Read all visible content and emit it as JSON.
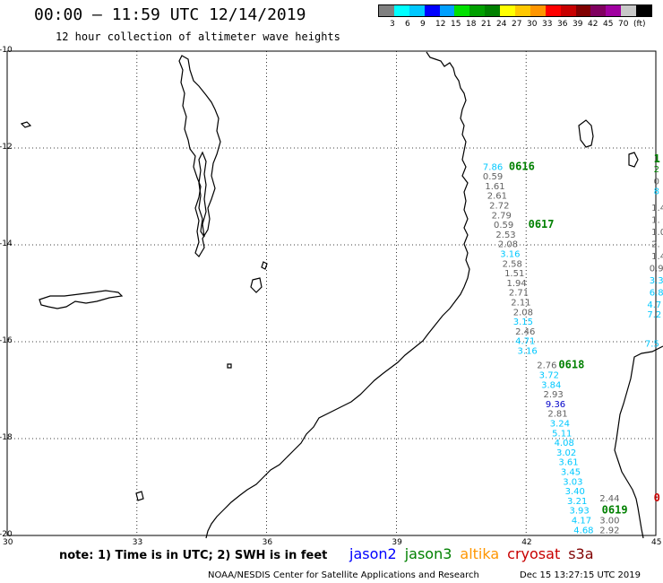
{
  "header": {
    "title": "00:00 – 11:59 UTC 12/14/2019",
    "subtitle": "12 hour collection of altimeter wave heights"
  },
  "legend": {
    "colors": [
      "#808080",
      "#00ffff",
      "#00c8ff",
      "#0000ff",
      "#00a0ff",
      "#00e000",
      "#00a000",
      "#008000",
      "#ffff00",
      "#ffc800",
      "#ff9600",
      "#ff0000",
      "#c80000",
      "#800000",
      "#800060",
      "#a000a0",
      "#c8c8c8",
      "#000000"
    ],
    "labels": [
      "3",
      "6",
      "9",
      "12",
      "15",
      "18",
      "21",
      "24",
      "27",
      "30",
      "33",
      "36",
      "39",
      "42",
      "45",
      "70",
      "(ft)"
    ]
  },
  "map": {
    "lat_labels": [
      "-10",
      "-12",
      "-14",
      "-16",
      "-18",
      "-20"
    ],
    "lon_labels": [
      "30",
      "33",
      "36",
      "39",
      "42",
      "45"
    ],
    "lon_range": [
      30,
      45
    ],
    "lat_range": [
      -20,
      -10
    ],
    "coast_color": "#000000",
    "grid": "dotted"
  },
  "wave_labels": [
    {
      "text": "7.86",
      "color": "#00c8ff",
      "lon": 41.0,
      "lat": -12.45
    },
    {
      "text": "0.59",
      "color": "#606060",
      "lon": 41.0,
      "lat": -12.65
    },
    {
      "text": "1.61",
      "color": "#606060",
      "lon": 41.05,
      "lat": -12.85
    },
    {
      "text": "2.61",
      "color": "#606060",
      "lon": 41.1,
      "lat": -13.05
    },
    {
      "text": "2.72",
      "color": "#606060",
      "lon": 41.15,
      "lat": -13.25
    },
    {
      "text": "2.79",
      "color": "#606060",
      "lon": 41.2,
      "lat": -13.45
    },
    {
      "text": "0.59",
      "color": "#606060",
      "lon": 41.25,
      "lat": -13.65
    },
    {
      "text": "2.53",
      "color": "#606060",
      "lon": 41.3,
      "lat": -13.85
    },
    {
      "text": "2.08",
      "color": "#606060",
      "lon": 41.35,
      "lat": -14.05
    },
    {
      "text": "3.16",
      "color": "#00c8ff",
      "lon": 41.4,
      "lat": -14.25
    },
    {
      "text": "2.58",
      "color": "#606060",
      "lon": 41.45,
      "lat": -14.45
    },
    {
      "text": "1.51",
      "color": "#606060",
      "lon": 41.5,
      "lat": -14.65
    },
    {
      "text": "1.94",
      "color": "#606060",
      "lon": 41.55,
      "lat": -14.85
    },
    {
      "text": "2.71",
      "color": "#606060",
      "lon": 41.6,
      "lat": -15.05
    },
    {
      "text": "2.11",
      "color": "#606060",
      "lon": 41.65,
      "lat": -15.25
    },
    {
      "text": "2.08",
      "color": "#606060",
      "lon": 41.7,
      "lat": -15.45
    },
    {
      "text": "3.15",
      "color": "#00c8ff",
      "lon": 41.7,
      "lat": -15.65
    },
    {
      "text": "2.46",
      "color": "#606060",
      "lon": 41.75,
      "lat": -15.85
    },
    {
      "text": "4.71",
      "color": "#00c8ff",
      "lon": 41.75,
      "lat": -16.05
    },
    {
      "text": "3.16",
      "color": "#00c8ff",
      "lon": 41.8,
      "lat": -16.25
    },
    {
      "text": "2.76",
      "color": "#606060",
      "lon": 42.25,
      "lat": -16.55
    },
    {
      "text": "3.72",
      "color": "#00c8ff",
      "lon": 42.3,
      "lat": -16.75
    },
    {
      "text": "3.84",
      "color": "#00c8ff",
      "lon": 42.35,
      "lat": -16.95
    },
    {
      "text": "2.93",
      "color": "#606060",
      "lon": 42.4,
      "lat": -17.15
    },
    {
      "text": "9.36",
      "color": "#0000c8",
      "lon": 42.45,
      "lat": -17.35
    },
    {
      "text": "2.81",
      "color": "#606060",
      "lon": 42.5,
      "lat": -17.55
    },
    {
      "text": "3.24",
      "color": "#00c8ff",
      "lon": 42.55,
      "lat": -17.75
    },
    {
      "text": "5.11",
      "color": "#00c8ff",
      "lon": 42.6,
      "lat": -17.95
    },
    {
      "text": "4.08",
      "color": "#00c8ff",
      "lon": 42.65,
      "lat": -18.15
    },
    {
      "text": "3.02",
      "color": "#00c8ff",
      "lon": 42.7,
      "lat": -18.35
    },
    {
      "text": "3.61",
      "color": "#00c8ff",
      "lon": 42.75,
      "lat": -18.55
    },
    {
      "text": "3.45",
      "color": "#00c8ff",
      "lon": 42.8,
      "lat": -18.75
    },
    {
      "text": "3.03",
      "color": "#00c8ff",
      "lon": 42.85,
      "lat": -18.95
    },
    {
      "text": "3.40",
      "color": "#00c8ff",
      "lon": 42.9,
      "lat": -19.15
    },
    {
      "text": "3.21",
      "color": "#00c8ff",
      "lon": 42.95,
      "lat": -19.35
    },
    {
      "text": "3.93",
      "color": "#00c8ff",
      "lon": 43.0,
      "lat": -19.55
    },
    {
      "text": "4.17",
      "color": "#00c8ff",
      "lon": 43.05,
      "lat": -19.75
    },
    {
      "text": "4.68",
      "color": "#00c8ff",
      "lon": 43.1,
      "lat": -19.95
    },
    {
      "text": "2.44",
      "color": "#606060",
      "lon": 43.7,
      "lat": -19.3
    },
    {
      "text": "3.00",
      "color": "#606060",
      "lon": 43.7,
      "lat": -19.75
    },
    {
      "text": "2.92",
      "color": "#606060",
      "lon": 43.7,
      "lat": -19.95
    },
    {
      "text": "1.4",
      "color": "#606060",
      "lon": 44.9,
      "lat": -13.3
    },
    {
      "text": "1.",
      "color": "#606060",
      "lon": 44.9,
      "lat": -13.55
    },
    {
      "text": "1.0",
      "color": "#606060",
      "lon": 44.9,
      "lat": -13.8
    },
    {
      "text": "2.",
      "color": "#606060",
      "lon": 44.9,
      "lat": -14.05
    },
    {
      "text": "1.4",
      "color": "#606060",
      "lon": 44.9,
      "lat": -14.3
    },
    {
      "text": "0.9",
      "color": "#606060",
      "lon": 44.85,
      "lat": -14.55
    },
    {
      "text": "3.3",
      "color": "#00c8ff",
      "lon": 44.85,
      "lat": -14.8
    },
    {
      "text": "6.8",
      "color": "#00c8ff",
      "lon": 44.85,
      "lat": -15.05
    },
    {
      "text": "4.7",
      "color": "#00c8ff",
      "lon": 44.8,
      "lat": -15.3
    },
    {
      "text": "7.2",
      "color": "#00c8ff",
      "lon": 44.8,
      "lat": -15.5
    },
    {
      "text": "7.5",
      "color": "#00c8ff",
      "lon": 44.75,
      "lat": -16.1
    },
    {
      "text": "2",
      "color": "#008000",
      "lon": 44.95,
      "lat": -12.5
    },
    {
      "text": "0",
      "color": "#606060",
      "lon": 44.95,
      "lat": -12.75
    },
    {
      "text": "8",
      "color": "#00c8ff",
      "lon": 44.95,
      "lat": -12.95
    }
  ],
  "pass_labels": [
    {
      "text": "0616",
      "color": "#008000",
      "lon": 41.6,
      "lat": -12.45
    },
    {
      "text": "0617",
      "color": "#008000",
      "lon": 42.05,
      "lat": -13.65
    },
    {
      "text": "0618",
      "color": "#008000",
      "lon": 42.75,
      "lat": -16.55
    },
    {
      "text": "0619",
      "color": "#008000",
      "lon": 43.75,
      "lat": -19.55
    },
    {
      "text": "1",
      "color": "#008000",
      "lon": 44.95,
      "lat": -12.3
    },
    {
      "text": "0",
      "color": "#c80000",
      "lon": 44.95,
      "lat": -19.3
    }
  ],
  "note": "note: 1) Time is in UTC; 2) SWH is in feet",
  "satellites": [
    {
      "name": "jason2",
      "color": "#0000ff"
    },
    {
      "name": "jason3",
      "color": "#008000"
    },
    {
      "name": "altika",
      "color": "#ff9600"
    },
    {
      "name": "cryosat",
      "color": "#c80000"
    },
    {
      "name": "s3a",
      "color": "#800000"
    }
  ],
  "footer": {
    "left": "NOAA/NESDIS Center for Satellite Applications and Research",
    "right": "Dec 15 13:27:15 UTC 2019"
  }
}
